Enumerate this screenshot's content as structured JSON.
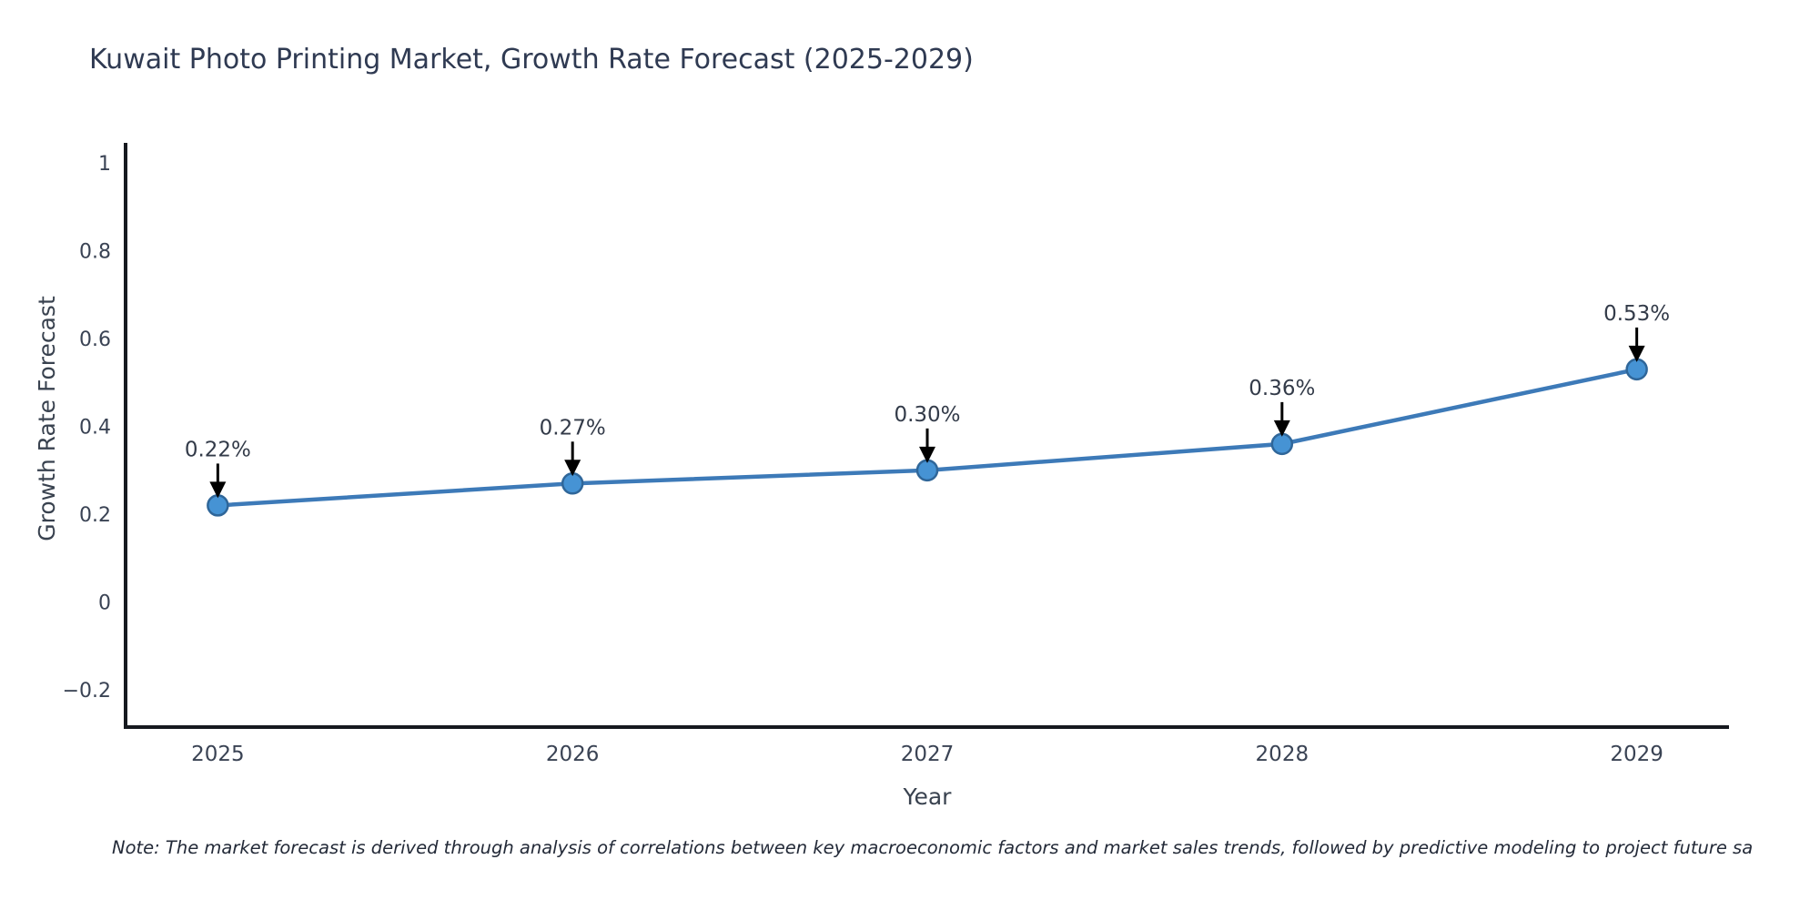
{
  "chart": {
    "title": "Kuwait Photo Printing Market, Growth Rate Forecast (2025-2029)",
    "note": "Note: The market forecast is derived through analysis of correlations between key macroeconomic factors and market sales trends, followed by predictive modeling to project future sa"
  },
  "chart_data": {
    "type": "line",
    "title": "Kuwait Photo Printing Market, Growth Rate Forecast (2025-2029)",
    "xlabel": "Year",
    "ylabel": "Growth Rate Forecast",
    "x": [
      2025,
      2026,
      2027,
      2028,
      2029
    ],
    "y": [
      0.22,
      0.27,
      0.3,
      0.36,
      0.53
    ],
    "point_labels": [
      "0.22%",
      "0.27%",
      "0.30%",
      "0.36%",
      "0.53%"
    ],
    "xtick_labels": [
      "2025",
      "2026",
      "2027",
      "2028",
      "2029"
    ],
    "yticks": [
      1,
      0.8,
      0.6,
      0.4,
      0.2,
      0,
      -0.2
    ],
    "ytick_labels": [
      "1",
      "0.8",
      "0.6",
      "0.4",
      "0.2",
      "0",
      "−0.2"
    ],
    "xlim": [
      2024.74,
      2029.26
    ],
    "ylim": [
      -0.285,
      1.046
    ],
    "grid": false,
    "legend": null,
    "colors": {
      "line": "#3d7ab8",
      "marker_fill": "#4693d4",
      "marker_edge": "#2f6699",
      "arrow": "#000000",
      "spine": "#16191f",
      "tick_text": "#3a4354",
      "axis_label_text": "#39424f",
      "annotation_text": "#333b49"
    }
  }
}
